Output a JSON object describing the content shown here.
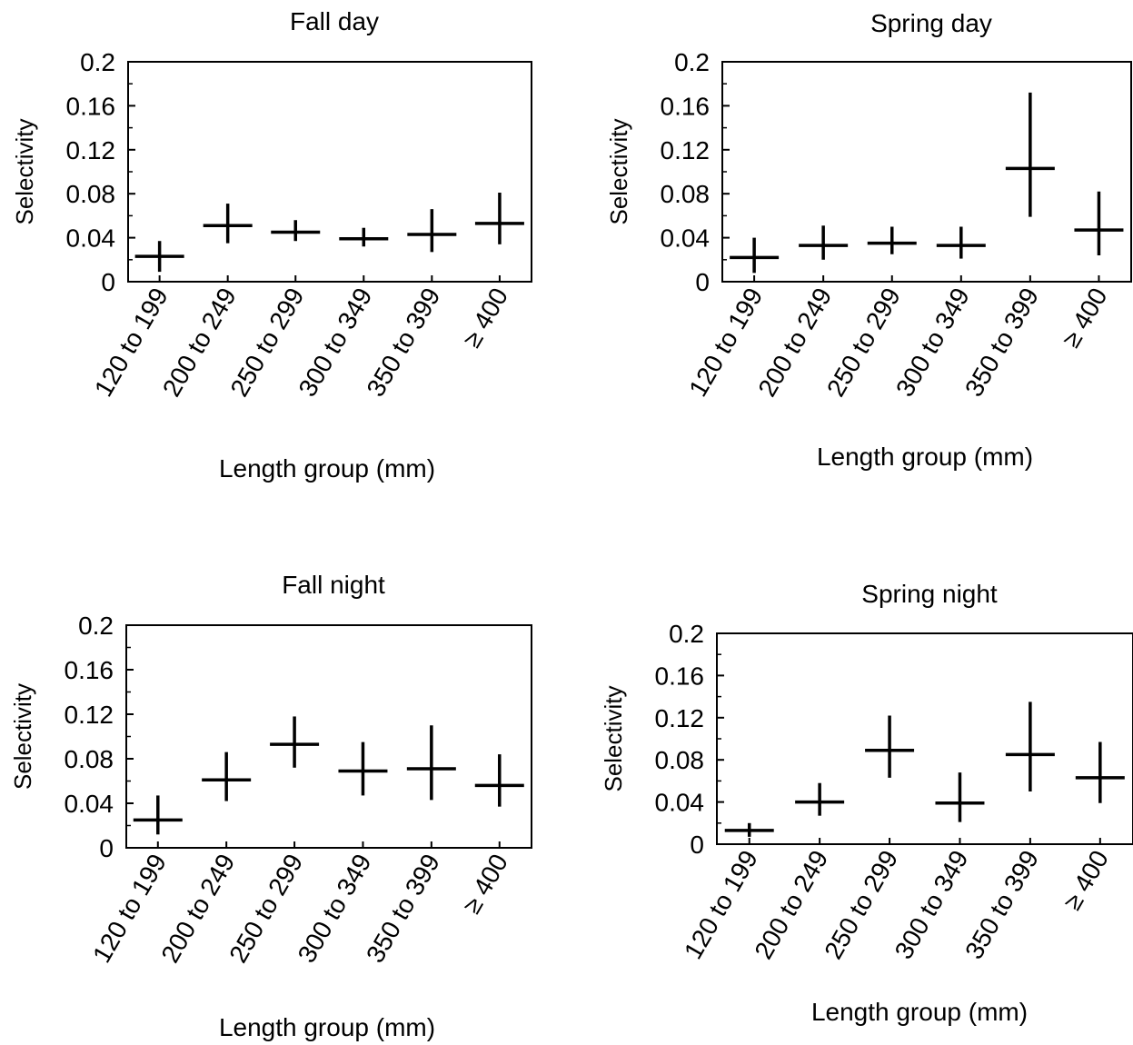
{
  "chart_data": [
    {
      "type": "scatter",
      "title": "Fall day",
      "xlabel": "Length group (mm)",
      "ylabel": "Selectivity",
      "categories": [
        "120 to 199",
        "200 to 249",
        "250 to 299",
        "300 to 349",
        "350 to 399",
        "≥ 400"
      ],
      "values": [
        0.023,
        0.051,
        0.045,
        0.039,
        0.043,
        0.053
      ],
      "lower": [
        0.009,
        0.035,
        0.037,
        0.032,
        0.027,
        0.034
      ],
      "upper": [
        0.037,
        0.071,
        0.056,
        0.049,
        0.066,
        0.081
      ],
      "ylim": [
        0,
        0.2
      ],
      "yticks": [
        "0",
        "0.04",
        "0.08",
        "0.12",
        "0.16",
        "0.2"
      ]
    },
    {
      "type": "scatter",
      "title": "Spring day",
      "xlabel": "Length group (mm)",
      "ylabel": "Selectivity",
      "categories": [
        "120 to 199",
        "200 to 249",
        "250 to 299",
        "300 to 349",
        "350 to 399",
        "≥ 400"
      ],
      "values": [
        0.022,
        0.033,
        0.035,
        0.033,
        0.103,
        0.047
      ],
      "lower": [
        0.008,
        0.02,
        0.025,
        0.021,
        0.059,
        0.024
      ],
      "upper": [
        0.04,
        0.051,
        0.05,
        0.05,
        0.172,
        0.082
      ],
      "ylim": [
        0,
        0.2
      ],
      "yticks": [
        "0",
        "0.04",
        "0.08",
        "0.12",
        "0.16",
        "0.2"
      ]
    },
    {
      "type": "scatter",
      "title": "Fall night",
      "xlabel": "Length group (mm)",
      "ylabel": "Selectivity",
      "categories": [
        "120 to 199",
        "200 to 249",
        "250 to 299",
        "300 to 349",
        "350 to 399",
        "≥ 400"
      ],
      "values": [
        0.025,
        0.061,
        0.093,
        0.069,
        0.071,
        0.056
      ],
      "lower": [
        0.012,
        0.042,
        0.072,
        0.047,
        0.043,
        0.037
      ],
      "upper": [
        0.047,
        0.086,
        0.118,
        0.095,
        0.11,
        0.084
      ],
      "ylim": [
        0,
        0.2
      ],
      "yticks": [
        "0",
        "0.04",
        "0.08",
        "0.12",
        "0.16",
        "0.2"
      ]
    },
    {
      "type": "scatter",
      "title": "Spring night",
      "xlabel": "Length group (mm)",
      "ylabel": "Selectivity",
      "categories": [
        "120 to 199",
        "200 to 249",
        "250 to 299",
        "300 to 349",
        "350 to 399",
        "≥ 400"
      ],
      "values": [
        0.013,
        0.04,
        0.089,
        0.039,
        0.085,
        0.063
      ],
      "lower": [
        0.007,
        0.027,
        0.063,
        0.021,
        0.05,
        0.039
      ],
      "upper": [
        0.02,
        0.058,
        0.122,
        0.068,
        0.135,
        0.097
      ],
      "ylim": [
        0,
        0.2
      ],
      "yticks": [
        "0",
        "0.04",
        "0.08",
        "0.12",
        "0.16",
        "0.2"
      ]
    }
  ]
}
